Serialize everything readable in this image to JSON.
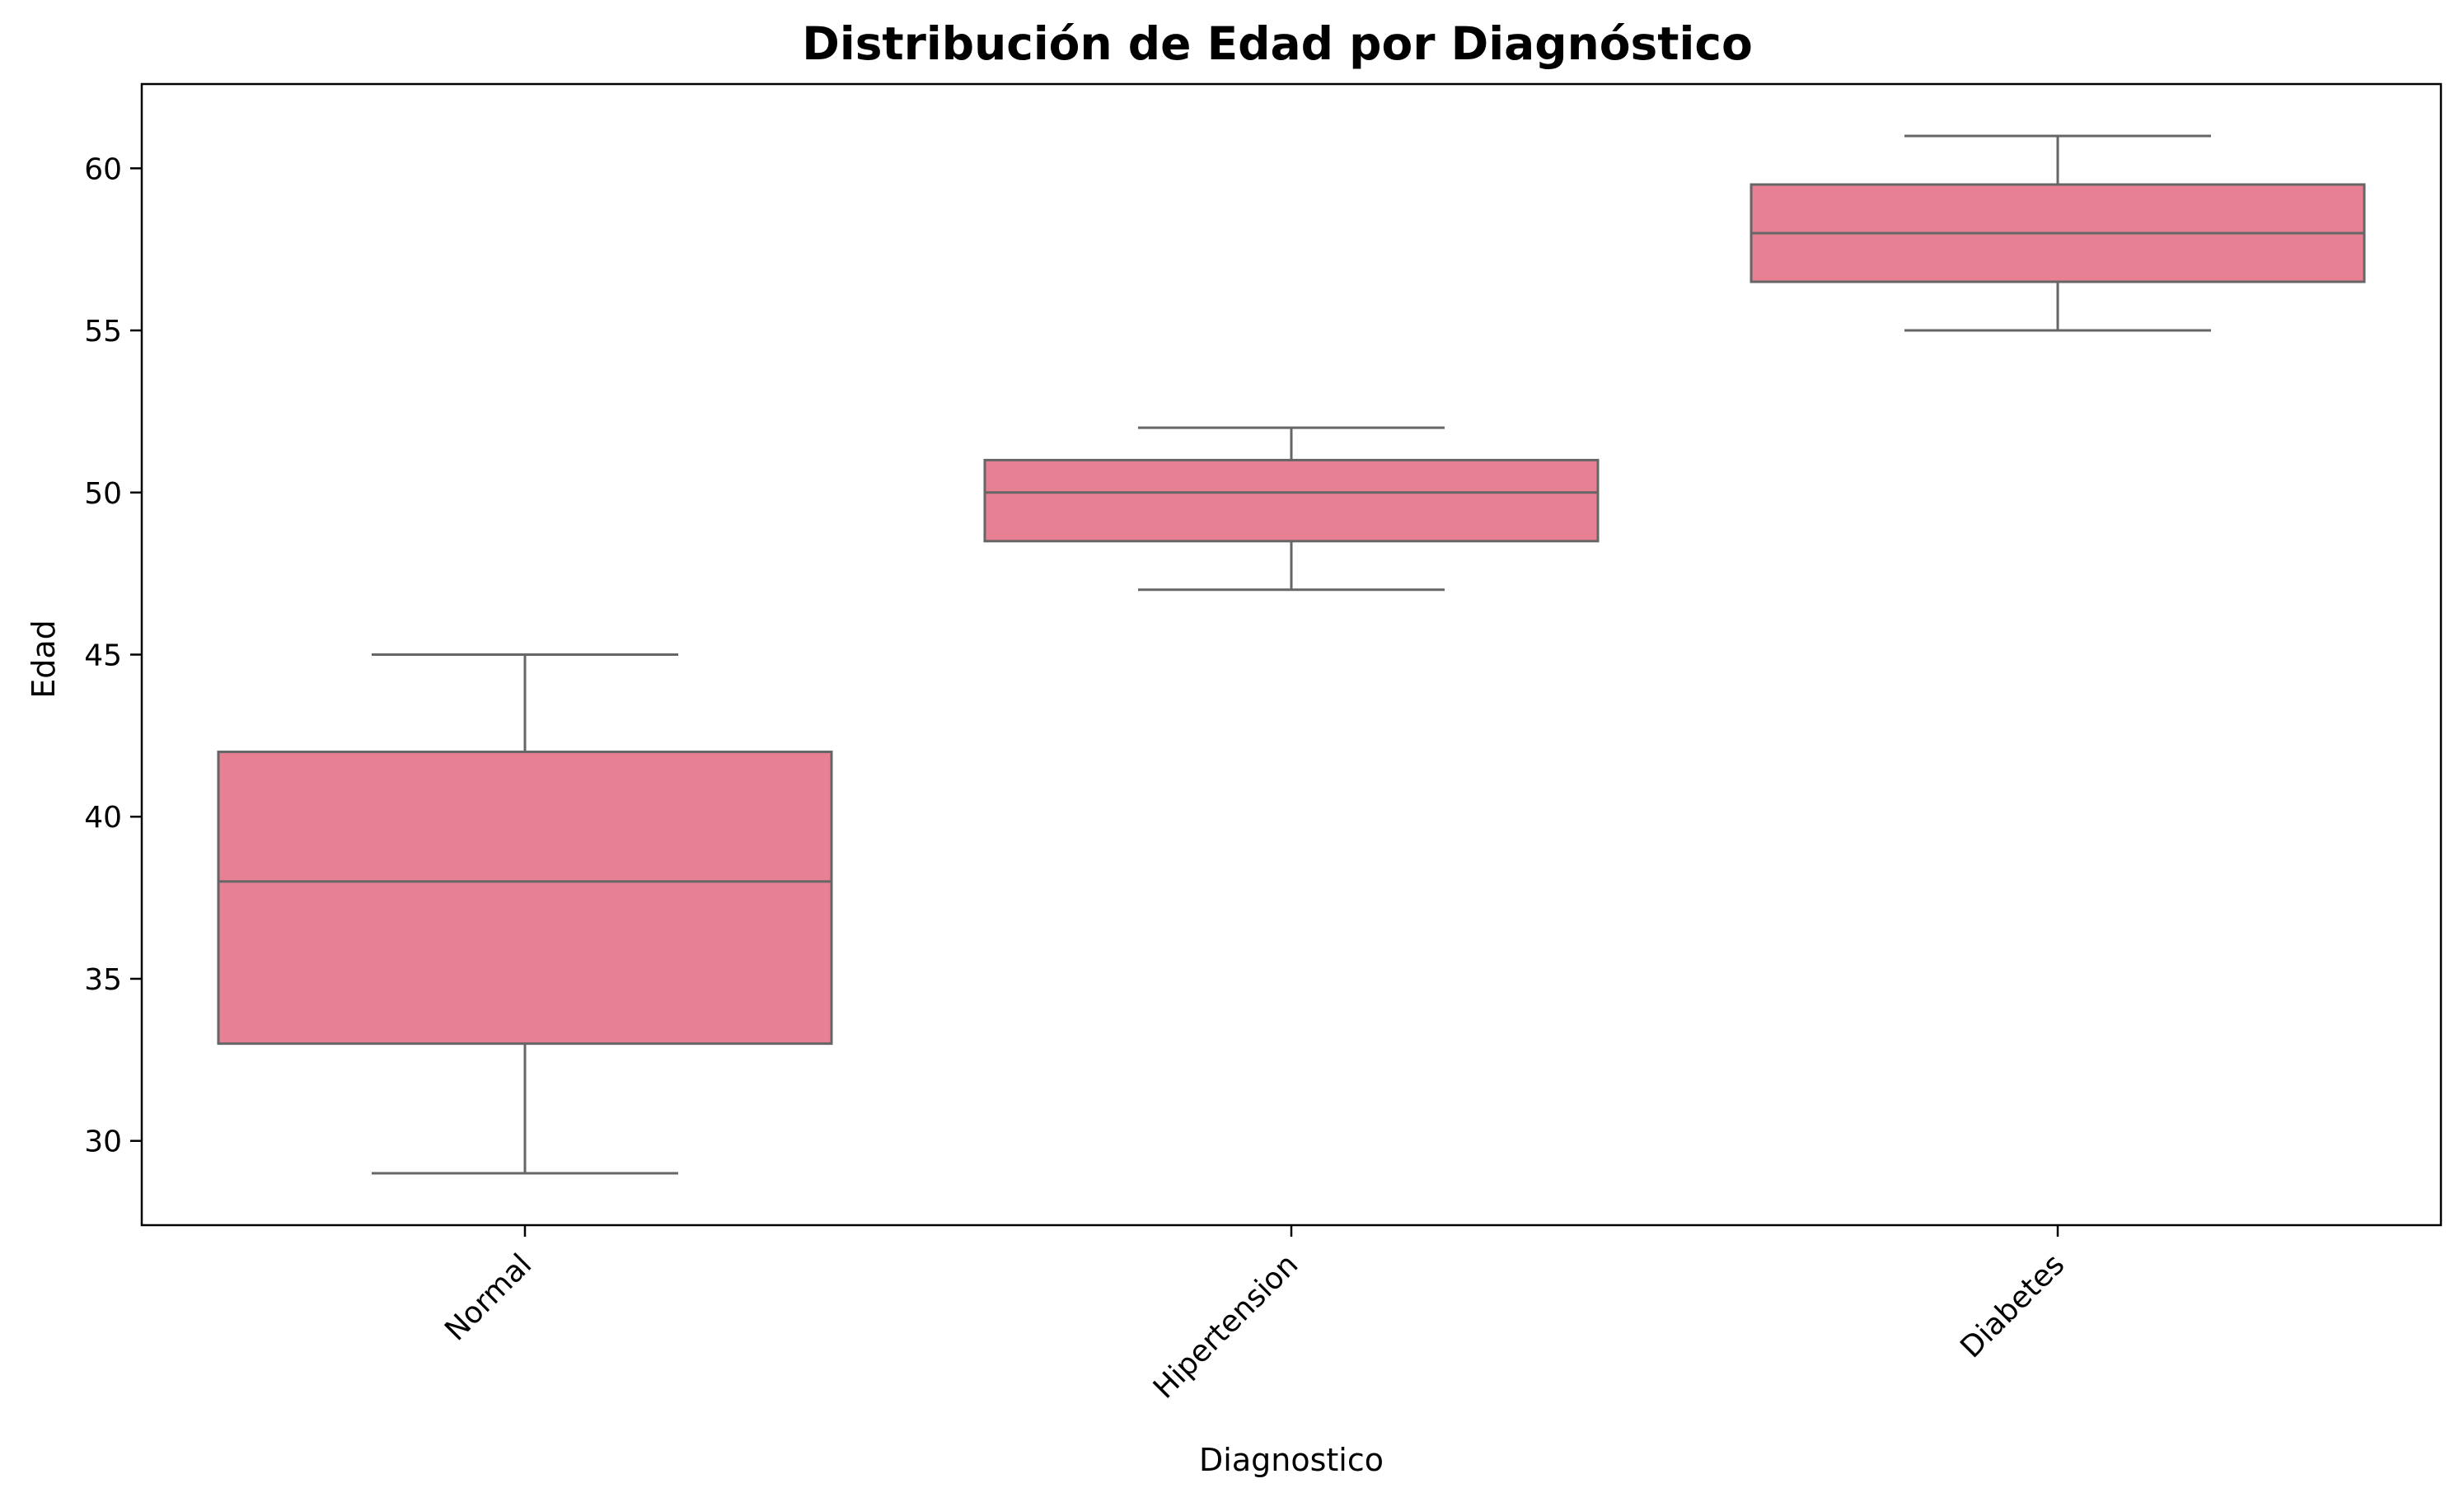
{
  "chart_data": {
    "type": "box",
    "title": "Distribución de Edad por Diagnóstico",
    "xlabel": "Diagnostico",
    "ylabel": "Edad",
    "ylim": [
      27.4,
      62.6
    ],
    "yticks": [
      30,
      35,
      40,
      45,
      50,
      55,
      60
    ],
    "grid": false,
    "categories": [
      "Normal",
      "Hipertension",
      "Diabetes"
    ],
    "boxes": [
      {
        "category": "Normal",
        "whisker_low": 29,
        "q1": 33,
        "median": 38,
        "q3": 42,
        "whisker_high": 45
      },
      {
        "category": "Hipertension",
        "whisker_low": 47,
        "q1": 48.5,
        "median": 50,
        "q3": 51,
        "whisker_high": 52
      },
      {
        "category": "Diabetes",
        "whisker_low": 55,
        "q1": 56.5,
        "median": 58,
        "q3": 59.5,
        "whisker_high": 61
      }
    ],
    "box_color": "#e88093",
    "line_color": "#666666"
  }
}
